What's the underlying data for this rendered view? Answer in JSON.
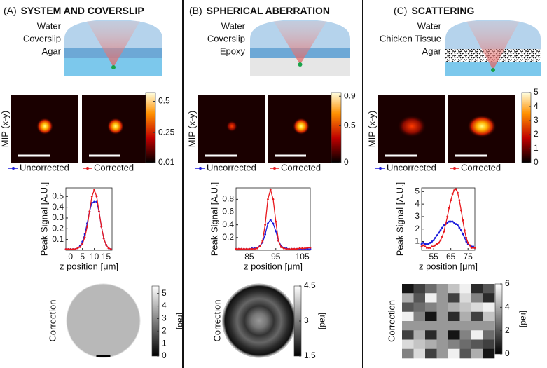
{
  "panels": [
    {
      "label": "(A)",
      "title": "SYSTEM AND COVERSLIP",
      "layers": [
        "Water",
        "Coverslip",
        "Agar"
      ],
      "mip_label": "MIP (x-y)",
      "mip_colorbar": {
        "lim": [
          0.01,
          0.57
        ],
        "ticks": [
          0.5,
          0.25,
          0.01
        ]
      },
      "legend": [
        "Uncorrected",
        "Corrected"
      ],
      "chart": {
        "type": "line",
        "ylabel": "Peak Signal [A.U.]",
        "xlabel": "z position [μm]",
        "xlim": [
          -2,
          17.5
        ],
        "xticks": [
          0,
          5,
          10,
          15
        ],
        "ylim": [
          0,
          0.58
        ],
        "yticks": [
          0.1,
          0.2,
          0.3,
          0.4,
          0.5
        ],
        "x": [
          -2,
          -1,
          0,
          1,
          2,
          3,
          4,
          5,
          6,
          7,
          8,
          9,
          10,
          11,
          12,
          13,
          14,
          15,
          16,
          17
        ],
        "series": [
          {
            "name": "Uncorrected",
            "color": "#1a1adb",
            "values": [
              0.01,
              0.01,
              0.01,
              0.01,
              0.01,
              0.02,
              0.04,
              0.08,
              0.15,
              0.25,
              0.36,
              0.44,
              0.45,
              0.45,
              0.36,
              0.22,
              0.11,
              0.05,
              0.02,
              0.01
            ]
          },
          {
            "name": "Corrected",
            "color": "#e8191e",
            "values": [
              0.01,
              0.01,
              0.01,
              0.01,
              0.01,
              0.02,
              0.03,
              0.06,
              0.12,
              0.22,
              0.36,
              0.5,
              0.56,
              0.5,
              0.36,
              0.22,
              0.11,
              0.05,
              0.02,
              0.01
            ]
          }
        ]
      },
      "correction_label": "Correction",
      "correction_colorbar": {
        "lim": [
          0,
          5.6
        ],
        "ticks": [
          0,
          1,
          2,
          3,
          4,
          5
        ],
        "unit": "[rad]"
      }
    },
    {
      "label": "(B)",
      "title": "SPHERICAL ABERRATION",
      "layers": [
        "Water",
        "Coverslip",
        "Epoxy"
      ],
      "mip_label": "MIP (x-y)",
      "mip_colorbar": {
        "lim": [
          0,
          0.95
        ],
        "ticks": [
          0.9,
          0.5,
          0
        ]
      },
      "legend": [
        "Uncorrected",
        "Corrected"
      ],
      "chart": {
        "type": "line",
        "ylabel": "Peak Signal [A.U.]",
        "xlabel": "z position [μm]",
        "xlim": [
          80,
          108
        ],
        "xticks": [
          85,
          95,
          105
        ],
        "ylim": [
          0,
          0.98
        ],
        "yticks": [
          0.2,
          0.4,
          0.6,
          0.8
        ],
        "x": [
          80,
          81,
          82,
          83,
          84,
          85,
          86,
          87,
          88,
          89,
          90,
          91,
          92,
          93,
          94,
          95,
          96,
          97,
          98,
          99,
          100,
          101,
          102,
          103,
          104,
          105,
          106,
          107,
          108
        ],
        "series": [
          {
            "name": "Uncorrected",
            "color": "#1a1adb",
            "values": [
              0.02,
              0.02,
              0.02,
              0.02,
              0.02,
              0.02,
              0.03,
              0.03,
              0.04,
              0.07,
              0.12,
              0.25,
              0.42,
              0.48,
              0.42,
              0.3,
              0.15,
              0.07,
              0.04,
              0.03,
              0.02,
              0.02,
              0.02,
              0.02,
              0.02,
              0.02,
              0.02,
              0.02,
              0.02
            ]
          },
          {
            "name": "Corrected",
            "color": "#e8191e",
            "values": [
              0.02,
              0.02,
              0.02,
              0.02,
              0.02,
              0.02,
              0.02,
              0.02,
              0.03,
              0.06,
              0.15,
              0.4,
              0.8,
              0.95,
              0.8,
              0.45,
              0.15,
              0.05,
              0.03,
              0.02,
              0.02,
              0.02,
              0.02,
              0.02,
              0.03,
              0.03,
              0.03,
              0.04,
              0.04
            ]
          }
        ]
      },
      "correction_label": "Correction",
      "correction_colorbar": {
        "lim": [
          1.5,
          4.5
        ],
        "ticks": [
          1.5,
          3,
          4.5
        ],
        "unit": "[rad]"
      }
    },
    {
      "label": "(C)",
      "title": "SCATTERING",
      "layers": [
        "Water",
        "Chicken Tissue",
        "Agar"
      ],
      "mip_label": "MIP (x-y)",
      "mip_colorbar": {
        "lim": [
          0,
          5
        ],
        "ticks": [
          0,
          1,
          2,
          3,
          4,
          5
        ]
      },
      "legend": [
        "Uncorrected",
        "Corrected"
      ],
      "chart": {
        "type": "line",
        "ylabel": "Peak Signal [A.U.]",
        "xlabel": "z position [μm]",
        "xlim": [
          48,
          79
        ],
        "xticks": [
          55,
          65,
          75
        ],
        "ylim": [
          0.3,
          5.3
        ],
        "yticks": [
          1,
          2,
          3,
          4,
          5
        ],
        "x": [
          48,
          49,
          50,
          51,
          52,
          53,
          54,
          55,
          56,
          57,
          58,
          59,
          60,
          61,
          62,
          63,
          64,
          65,
          66,
          67,
          68,
          69,
          70,
          71,
          72,
          73,
          74,
          75,
          76,
          77,
          78,
          79
        ],
        "series": [
          {
            "name": "Uncorrected",
            "color": "#1a1adb",
            "values": [
              0.8,
              0.9,
              0.8,
              0.8,
              0.8,
              0.9,
              1.0,
              1.1,
              1.3,
              1.5,
              1.7,
              1.9,
              2.1,
              2.3,
              2.4,
              2.5,
              2.6,
              2.6,
              2.6,
              2.5,
              2.4,
              2.3,
              2.1,
              1.9,
              1.6,
              1.3,
              1.0,
              0.8,
              0.7,
              0.6,
              0.6,
              0.5
            ]
          },
          {
            "name": "Corrected",
            "color": "#e8191e",
            "values": [
              0.6,
              0.7,
              0.6,
              0.5,
              0.5,
              0.5,
              0.6,
              0.6,
              0.7,
              0.8,
              0.9,
              1.1,
              1.4,
              1.8,
              2.4,
              3.0,
              3.7,
              4.3,
              4.8,
              5.1,
              5.2,
              4.9,
              4.3,
              3.5,
              2.7,
              1.9,
              1.3,
              0.9,
              0.7,
              0.5,
              0.5,
              0.5
            ]
          }
        ]
      },
      "correction_label": "Correction",
      "correction_colorbar": {
        "lim": [
          0,
          6
        ],
        "ticks": [
          0,
          2,
          4,
          6
        ],
        "unit": "[rad]"
      }
    }
  ]
}
